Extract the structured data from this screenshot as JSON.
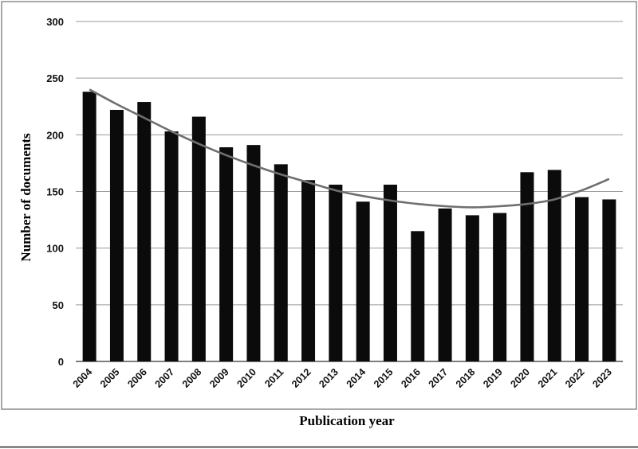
{
  "chart_data": {
    "type": "bar",
    "xlabel": "Publication year",
    "ylabel": "Number of documents",
    "ylim": [
      0,
      300
    ],
    "yticks": [
      0,
      50,
      100,
      150,
      200,
      250,
      300
    ],
    "grid": true,
    "categories": [
      "2004",
      "2005",
      "2006",
      "2007",
      "2008",
      "2009",
      "2010",
      "2011",
      "2012",
      "2013",
      "2014",
      "2015",
      "2016",
      "2017",
      "2018",
      "2019",
      "2020",
      "2021",
      "2022",
      "2023"
    ],
    "values": [
      238,
      222,
      229,
      203,
      216,
      189,
      191,
      174,
      160,
      156,
      141,
      156,
      115,
      135,
      129,
      131,
      167,
      169,
      145,
      143
    ],
    "trendline": {
      "type": "polynomial",
      "values": [
        240,
        227,
        215,
        203,
        192,
        182,
        173,
        165,
        158,
        151,
        146,
        142,
        139,
        137,
        136,
        137,
        139,
        143,
        151,
        161
      ]
    },
    "colors": {
      "bar": "#0b0b0b",
      "trendline": "#6f6f6f",
      "grid": "#9a9a9a",
      "frame": "#8c8c8c"
    }
  }
}
